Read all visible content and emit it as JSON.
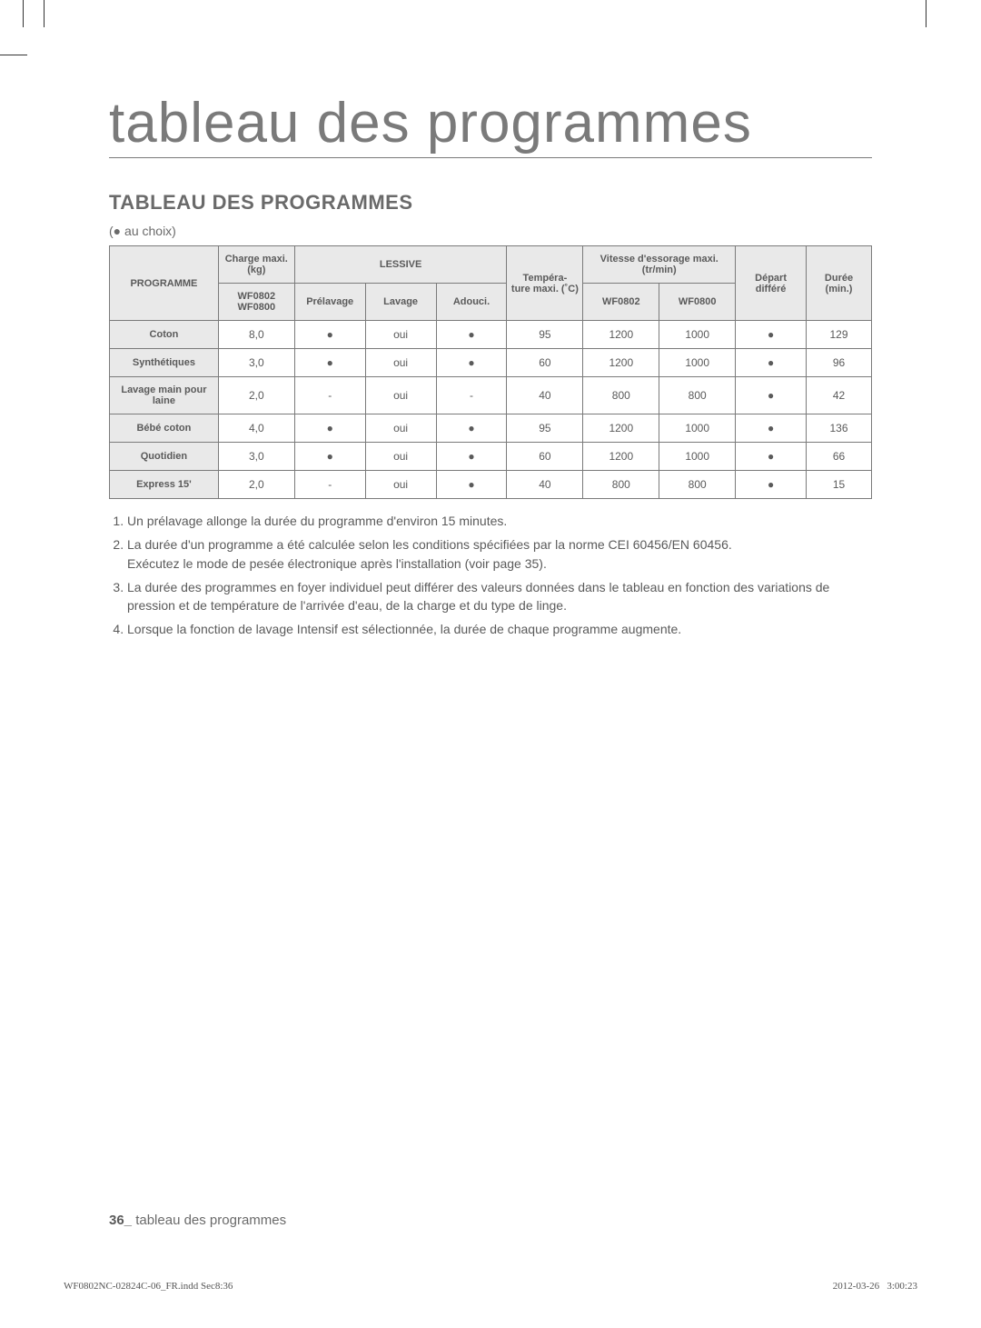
{
  "title_big": "tableau des programmes",
  "section_title": "TABLEAU DES PROGRAMMES",
  "legend_prefix": "(",
  "legend_dot": "●",
  "legend_text": " au choix)",
  "headers": {
    "programme": "PROGRAMME",
    "charge": "Charge maxi. (kg)",
    "charge_models": "WF0802 WF0800",
    "lessive": "LESSIVE",
    "prelavage": "Prélavage",
    "lavage": "Lavage",
    "adouci": "Adouci.",
    "temp": "Tempéra-\nture maxi. (˚C)",
    "vitesse": "Vitesse d'essorage maxi. (tr/min)",
    "v_model1": "WF0802",
    "v_model2": "WF0800",
    "depart": "Départ différé",
    "duree": "Durée (min.)"
  },
  "rows": [
    {
      "name": "Coton",
      "charge": "8,0",
      "pre": "●",
      "lav": "oui",
      "adou": "●",
      "temp": "95",
      "v1": "1200",
      "v2": "1000",
      "dep": "●",
      "dur": "129"
    },
    {
      "name": "Synthétiques",
      "charge": "3,0",
      "pre": "●",
      "lav": "oui",
      "adou": "●",
      "temp": "60",
      "v1": "1200",
      "v2": "1000",
      "dep": "●",
      "dur": "96"
    },
    {
      "name": "Lavage main pour laine",
      "charge": "2,0",
      "pre": "-",
      "lav": "oui",
      "adou": "-",
      "temp": "40",
      "v1": "800",
      "v2": "800",
      "dep": "●",
      "dur": "42"
    },
    {
      "name": "Bébé coton",
      "charge": "4,0",
      "pre": "●",
      "lav": "oui",
      "adou": "●",
      "temp": "95",
      "v1": "1200",
      "v2": "1000",
      "dep": "●",
      "dur": "136"
    },
    {
      "name": "Quotidien",
      "charge": "3,0",
      "pre": "●",
      "lav": "oui",
      "adou": "●",
      "temp": "60",
      "v1": "1200",
      "v2": "1000",
      "dep": "●",
      "dur": "66"
    },
    {
      "name": "Express 15'",
      "charge": "2,0",
      "pre": "-",
      "lav": "oui",
      "adou": "●",
      "temp": "40",
      "v1": "800",
      "v2": "800",
      "dep": "●",
      "dur": "15"
    }
  ],
  "notes": {
    "n1": "Un prélavage allonge la durée du programme d'environ 15 minutes.",
    "n2a": "La durée d'un programme a été calculée selon les conditions spécifiées par la norme CEI 60456/EN 60456.",
    "n2b": "Exécutez le mode de  pesée électronique après l'installation (voir page 35).",
    "n3": "La durée des programmes en foyer individuel peut différer des valeurs données dans le tableau en fonction des variations de pression et de température de l'arrivée d'eau, de la charge et du type de linge.",
    "n4": "Lorsque la fonction de lavage Intensif est sélectionnée, la durée de chaque programme augmente."
  },
  "footer": {
    "page_num": "36_",
    "footer_text": " tableau des programmes"
  },
  "printline": {
    "left": "WF0802NC-02824C-06_FR.indd   Sec8:36",
    "date": "2012-03-26",
    "time": "3:00:23"
  }
}
